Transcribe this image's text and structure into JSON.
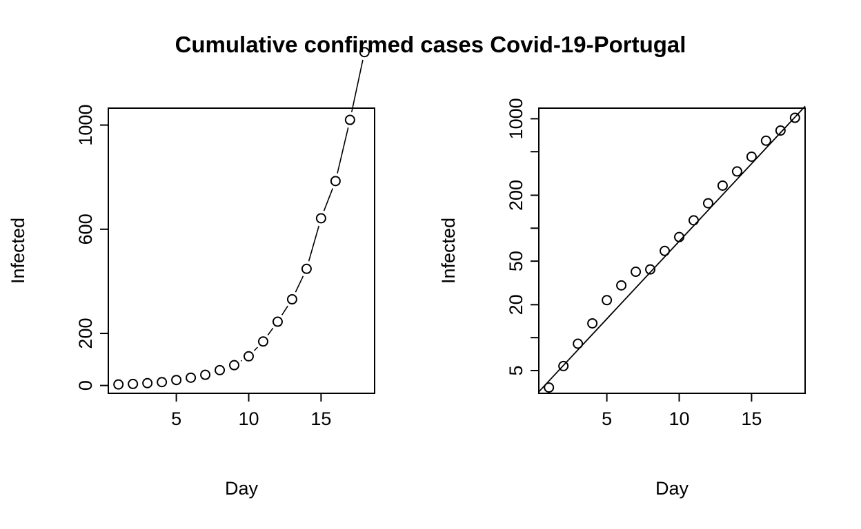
{
  "title": "Cumulative confirmed cases Covid-19-Portugal",
  "chart_data": [
    {
      "type": "line",
      "title": "",
      "xlabel": "Day",
      "ylabel": "Infected",
      "x": [
        1,
        2,
        3,
        4,
        5,
        6,
        7,
        8,
        9,
        10,
        11,
        12,
        13,
        14,
        15,
        16,
        17,
        18
      ],
      "series": [
        {
          "values": [
            4,
            6,
            9,
            13,
            21,
            30,
            41,
            59,
            78,
            112,
            169,
            245,
            331,
            448,
            642,
            785,
            1020,
            1280
          ]
        }
      ],
      "xlim": [
        0.3,
        18.7
      ],
      "ylim": [
        -30,
        1065
      ],
      "xticks": [
        5,
        10,
        15
      ],
      "yticks": [
        0,
        200,
        600,
        1000
      ],
      "ytick_labels": [
        "0",
        "200",
        "600",
        "1000"
      ],
      "log_y": false,
      "grid": false,
      "point_style": "open-circle",
      "line_style": "line through points, broken at markers"
    },
    {
      "type": "scatter",
      "title": "",
      "xlabel": "Day",
      "ylabel": "Infected",
      "x": [
        1,
        2,
        3,
        4,
        5,
        6,
        7,
        8,
        9,
        10,
        11,
        12,
        13,
        14,
        15,
        16,
        17,
        18
      ],
      "series": [
        {
          "values": [
            3.5,
            5.5,
            8.8,
            13.5,
            22,
            30,
            40,
            42,
            62,
            83,
            118,
            169,
            245,
            330,
            450,
            630,
            780,
            1020
          ]
        }
      ],
      "fit_line": {
        "x": [
          0.3,
          18.7
        ],
        "y": [
          3.2,
          1300
        ]
      },
      "xlim": [
        0.3,
        18.7
      ],
      "ylim": [
        3.1,
        1250
      ],
      "xticks": [
        5,
        10,
        15
      ],
      "yticks": [
        5,
        20,
        50,
        200,
        1000
      ],
      "ytick_labels": [
        "5",
        "20",
        "50",
        "200",
        "1000"
      ],
      "ytick_marks": [
        5,
        10,
        20,
        50,
        100,
        200,
        500,
        1000
      ],
      "log_y": true,
      "grid": false,
      "point_style": "open-circle"
    }
  ]
}
